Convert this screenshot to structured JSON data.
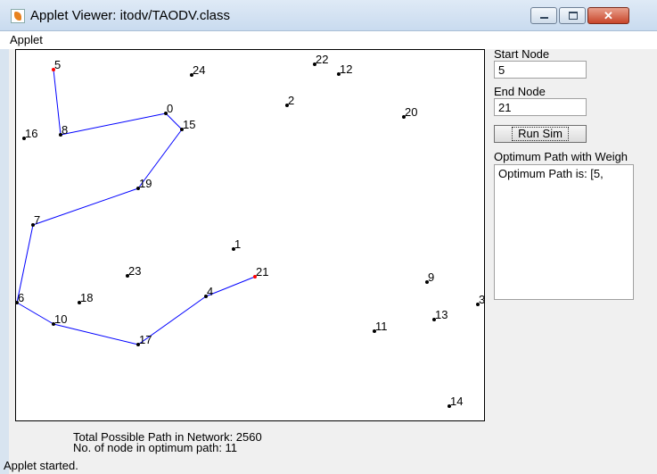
{
  "window": {
    "title": "Applet Viewer: itodv/TAODV.class"
  },
  "menu": {
    "applet": "Applet"
  },
  "panel": {
    "start_label": "Start Node",
    "start_value": "5",
    "end_label": "End Node",
    "end_value": "21",
    "run_button": "Run Sim",
    "optimum_label": "Optimum Path with Weigh",
    "result_text": "Optimum Path is: [5,"
  },
  "stats": {
    "total_paths": "Total Possible Path in Network: 2560",
    "nodes_in_path": "No. of node in optimum path: 11"
  },
  "status": "Applet started.",
  "colors": {
    "path": "#0000ff",
    "endpoint": "#ff0000",
    "node": "#000000"
  },
  "nodes": [
    {
      "id": "5",
      "endpoint": true
    },
    {
      "id": "24"
    },
    {
      "id": "22"
    },
    {
      "id": "12"
    },
    {
      "id": "2"
    },
    {
      "id": "0"
    },
    {
      "id": "15"
    },
    {
      "id": "16"
    },
    {
      "id": "8"
    },
    {
      "id": "20"
    },
    {
      "id": "19"
    },
    {
      "id": "7"
    },
    {
      "id": "1"
    },
    {
      "id": "23"
    },
    {
      "id": "21",
      "endpoint": true
    },
    {
      "id": "9"
    },
    {
      "id": "18"
    },
    {
      "id": "4"
    },
    {
      "id": "6"
    },
    {
      "id": "3"
    },
    {
      "id": "10"
    },
    {
      "id": "13"
    },
    {
      "id": "11"
    },
    {
      "id": "17"
    },
    {
      "id": "14"
    }
  ],
  "optimum_path": [
    "5",
    "8",
    "0",
    "15",
    "19",
    "7",
    "6",
    "10",
    "17",
    "4",
    "21"
  ]
}
